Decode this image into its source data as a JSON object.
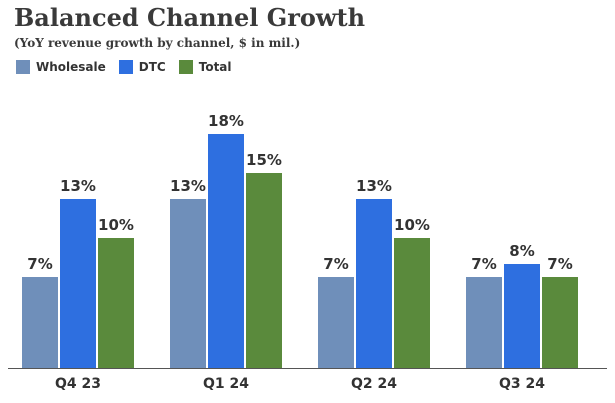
{
  "chart_data": {
    "type": "bar",
    "title": "Balanced Channel Growth",
    "subtitle": "(YoY revenue growth by channel, $ in mil.)",
    "categories": [
      "Q4 23",
      "Q1 24",
      "Q2 24",
      "Q3 24"
    ],
    "series": [
      {
        "name": "Wholesale",
        "color": "#6f8fba",
        "values": [
          7,
          13,
          7,
          7
        ],
        "labels": [
          "7%",
          "13%",
          "7%",
          "7%"
        ]
      },
      {
        "name": "DTC",
        "color": "#2e6fe0",
        "values": [
          13,
          18,
          13,
          8
        ],
        "labels": [
          "13%",
          "18%",
          "13%",
          "8%"
        ]
      },
      {
        "name": "Total",
        "color": "#5a8a3c",
        "values": [
          10,
          15,
          10,
          7
        ],
        "labels": [
          "10%",
          "15%",
          "10%",
          "7%"
        ]
      }
    ],
    "ylim": [
      0,
      18
    ],
    "xlabel": "",
    "ylabel": "",
    "grid": false,
    "legend_position": "top-left"
  }
}
